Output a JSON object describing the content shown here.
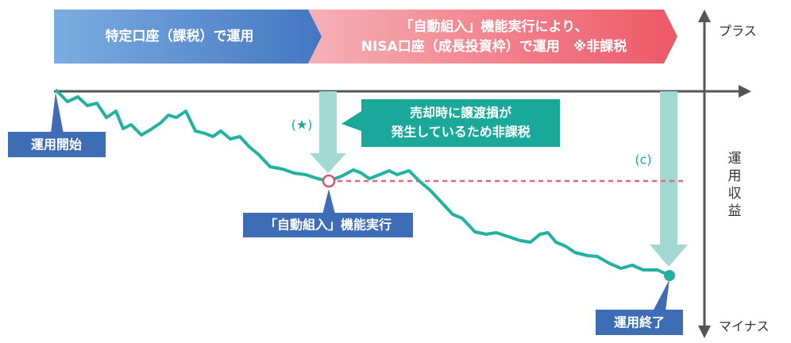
{
  "banner": {
    "left": "特定口座（課税）で運用",
    "right_line1": "「自動組入」機能実行により、",
    "right_line2": "NISA口座（成長投資枠）で運用　※非課税"
  },
  "axis": {
    "plus": "プラス",
    "minus": "マイナス",
    "label": [
      "運",
      "用",
      "収",
      "益"
    ]
  },
  "labels": {
    "start": "運用開始",
    "switch": "「自動組入」機能実行",
    "end": "運用終了",
    "star": "(★)",
    "c": "(c)"
  },
  "callout": {
    "line1": "売却時に譲渡損が",
    "line2": "発生しているため非課税"
  }
}
